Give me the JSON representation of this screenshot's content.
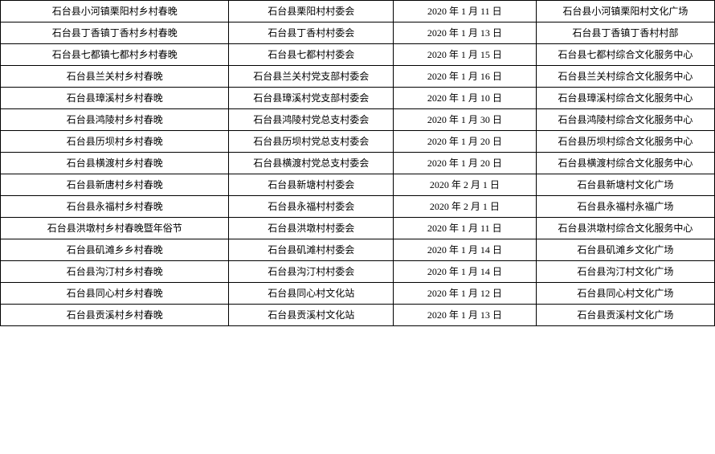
{
  "table": {
    "border_color": "#000000",
    "background_color": "#ffffff",
    "text_color": "#000000",
    "font_size": 12,
    "font_family": "SimSun",
    "column_widths": [
      "32%",
      "23%",
      "20%",
      "25%"
    ],
    "rows": [
      [
        "石台县小河镇栗阳村乡村春晚",
        "石台县栗阳村村委会",
        "2020 年 1 月 11 日",
        "石台县小河镇栗阳村文化广场"
      ],
      [
        "石台县丁香镇丁香村乡村春晚",
        "石台县丁香村村委会",
        "2020 年 1 月 13 日",
        "石台县丁香镇丁香村村部"
      ],
      [
        "石台县七都镇七都村乡村春晚",
        "石台县七都村村委会",
        "2020 年 1 月 15 日",
        "石台县七都村综合文化服务中心"
      ],
      [
        "石台县兰关村乡村春晚",
        "石台县兰关村党支部村委会",
        "2020 年 1 月 16 日",
        "石台县兰关村综合文化服务中心"
      ],
      [
        "石台县璋溪村乡村春晚",
        "石台县璋溪村党支部村委会",
        "2020 年 1 月 10 日",
        "石台县璋溪村综合文化服务中心"
      ],
      [
        "石台县鸿陵村乡村春晚",
        "石台县鸿陵村党总支村委会",
        "2020 年 1 月 30 日",
        "石台县鸿陵村综合文化服务中心"
      ],
      [
        "石台县历坝村乡村春晚",
        "石台县历坝村党总支村委会",
        "2020 年 1 月 20 日",
        "石台县历坝村综合文化服务中心"
      ],
      [
        "石台县横渡村乡村春晚",
        "石台县横渡村党总支村委会",
        "2020 年 1 月 20 日",
        "石台县横渡村综合文化服务中心"
      ],
      [
        "石台县新唐村乡村春晚",
        "石台县新塘村村委会",
        "2020 年 2 月 1 日",
        "石台县新塘村文化广场"
      ],
      [
        "石台县永福村乡村春晚",
        "石台县永福村村委会",
        "2020 年 2 月 1 日",
        "石台县永福村永福广场"
      ],
      [
        "石台县洪墩村乡村春晚暨年俗节",
        "石台县洪墩村村委会",
        "2020 年 1 月 11 日",
        "石台县洪墩村综合文化服务中心"
      ],
      [
        "石台县矶滩乡乡村春晚",
        "石台县矶滩村村委会",
        "2020 年 1 月 14 日",
        "石台县矶滩乡文化广场"
      ],
      [
        "石台县沟汀村乡村春晚",
        "石台县沟汀村村委会",
        "2020 年 1 月 14 日",
        "石台县沟汀村文化广场"
      ],
      [
        "石台县同心村乡村春晚",
        "石台县同心村文化站",
        "2020 年 1 月 12 日",
        "石台县同心村文化广场"
      ],
      [
        "石台县贡溪村乡村春晚",
        "石台县贡溪村文化站",
        "2020 年 1 月 13 日",
        "石台县贡溪村文化广场"
      ]
    ]
  }
}
